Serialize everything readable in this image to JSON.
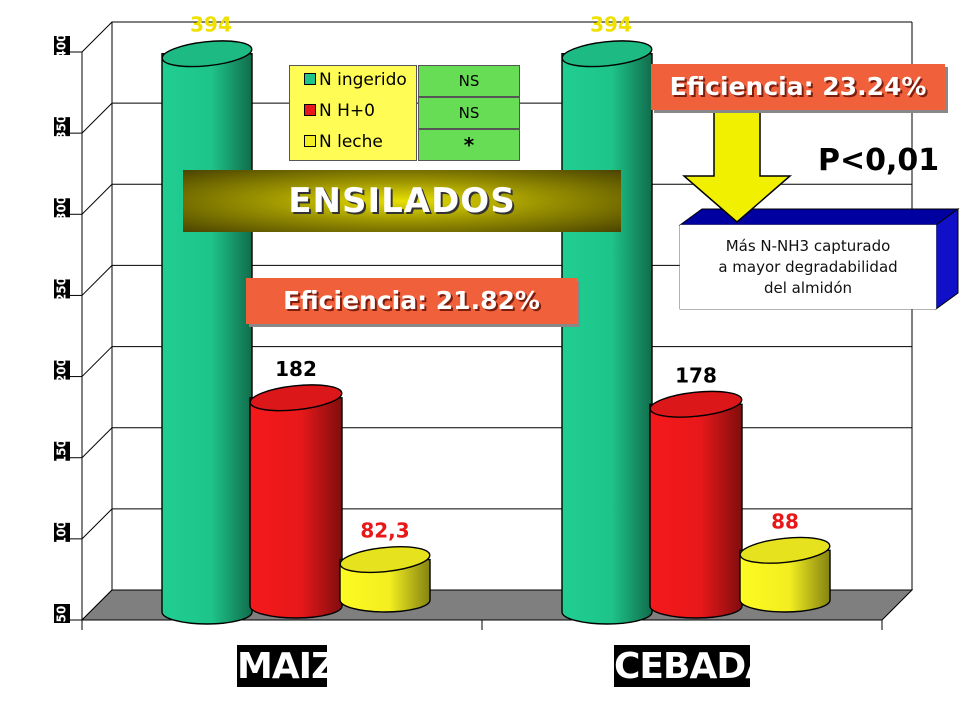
{
  "chart_data": {
    "type": "bar",
    "categories": [
      "MAIZ",
      "CEBADA"
    ],
    "ylim": [
      50,
      400
    ],
    "yticks": [
      50,
      100,
      150,
      200,
      250,
      300,
      350,
      400
    ],
    "grid": true,
    "series": [
      {
        "name": "N ingerido",
        "values": [
          394,
          394
        ],
        "labels": [
          "394",
          "394"
        ],
        "color": "#1ec48a",
        "label_color": "#f0e000"
      },
      {
        "name": "N H+0",
        "values": [
          182,
          178
        ],
        "labels": [
          "182",
          "178"
        ],
        "color": "#e8181a",
        "label_color": "#000000"
      },
      {
        "name": "N leche",
        "values": [
          82.3,
          88
        ],
        "labels": [
          "82,3",
          "88"
        ],
        "color": "#f2ee20",
        "label_color": "#e81818"
      }
    ]
  },
  "legend": {
    "significance": [
      "NS",
      "NS",
      "*"
    ]
  },
  "annotations": {
    "eficiencia_maiz": "Eficiencia: 21.82%",
    "eficiencia_cebada": "Eficiencia: 23.24%",
    "ensilados": "ENSILADOS",
    "p_value": "P<0,01",
    "note_lines": [
      "Más N-NH3 capturado",
      "a mayor degradabilidad",
      "del almidón"
    ]
  },
  "colors": {
    "note_box_blue": "#0000a0",
    "arrow_yellow": "#f0f000"
  }
}
